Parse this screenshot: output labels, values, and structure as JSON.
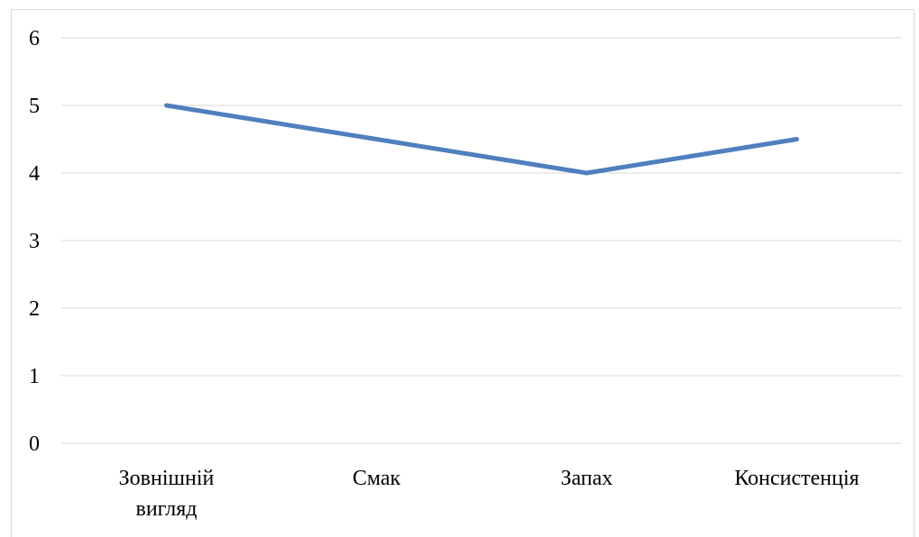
{
  "chart_data": {
    "type": "line",
    "title": "",
    "xlabel": "",
    "ylabel": "",
    "categories": [
      [
        "Зовнішній",
        "вигляд"
      ],
      [
        "Смак"
      ],
      [
        "Запах"
      ],
      [
        "Консистенція"
      ]
    ],
    "series": [
      {
        "values": [
          5,
          4.5,
          4,
          4.5
        ],
        "color": "#4F7FBE"
      }
    ],
    "ylim": [
      0,
      6
    ],
    "yticks": [
      "0",
      "1",
      "2",
      "3",
      "4",
      "5",
      "6"
    ],
    "grid": true,
    "gridColor": "#d9d9d9",
    "legend": "none"
  }
}
